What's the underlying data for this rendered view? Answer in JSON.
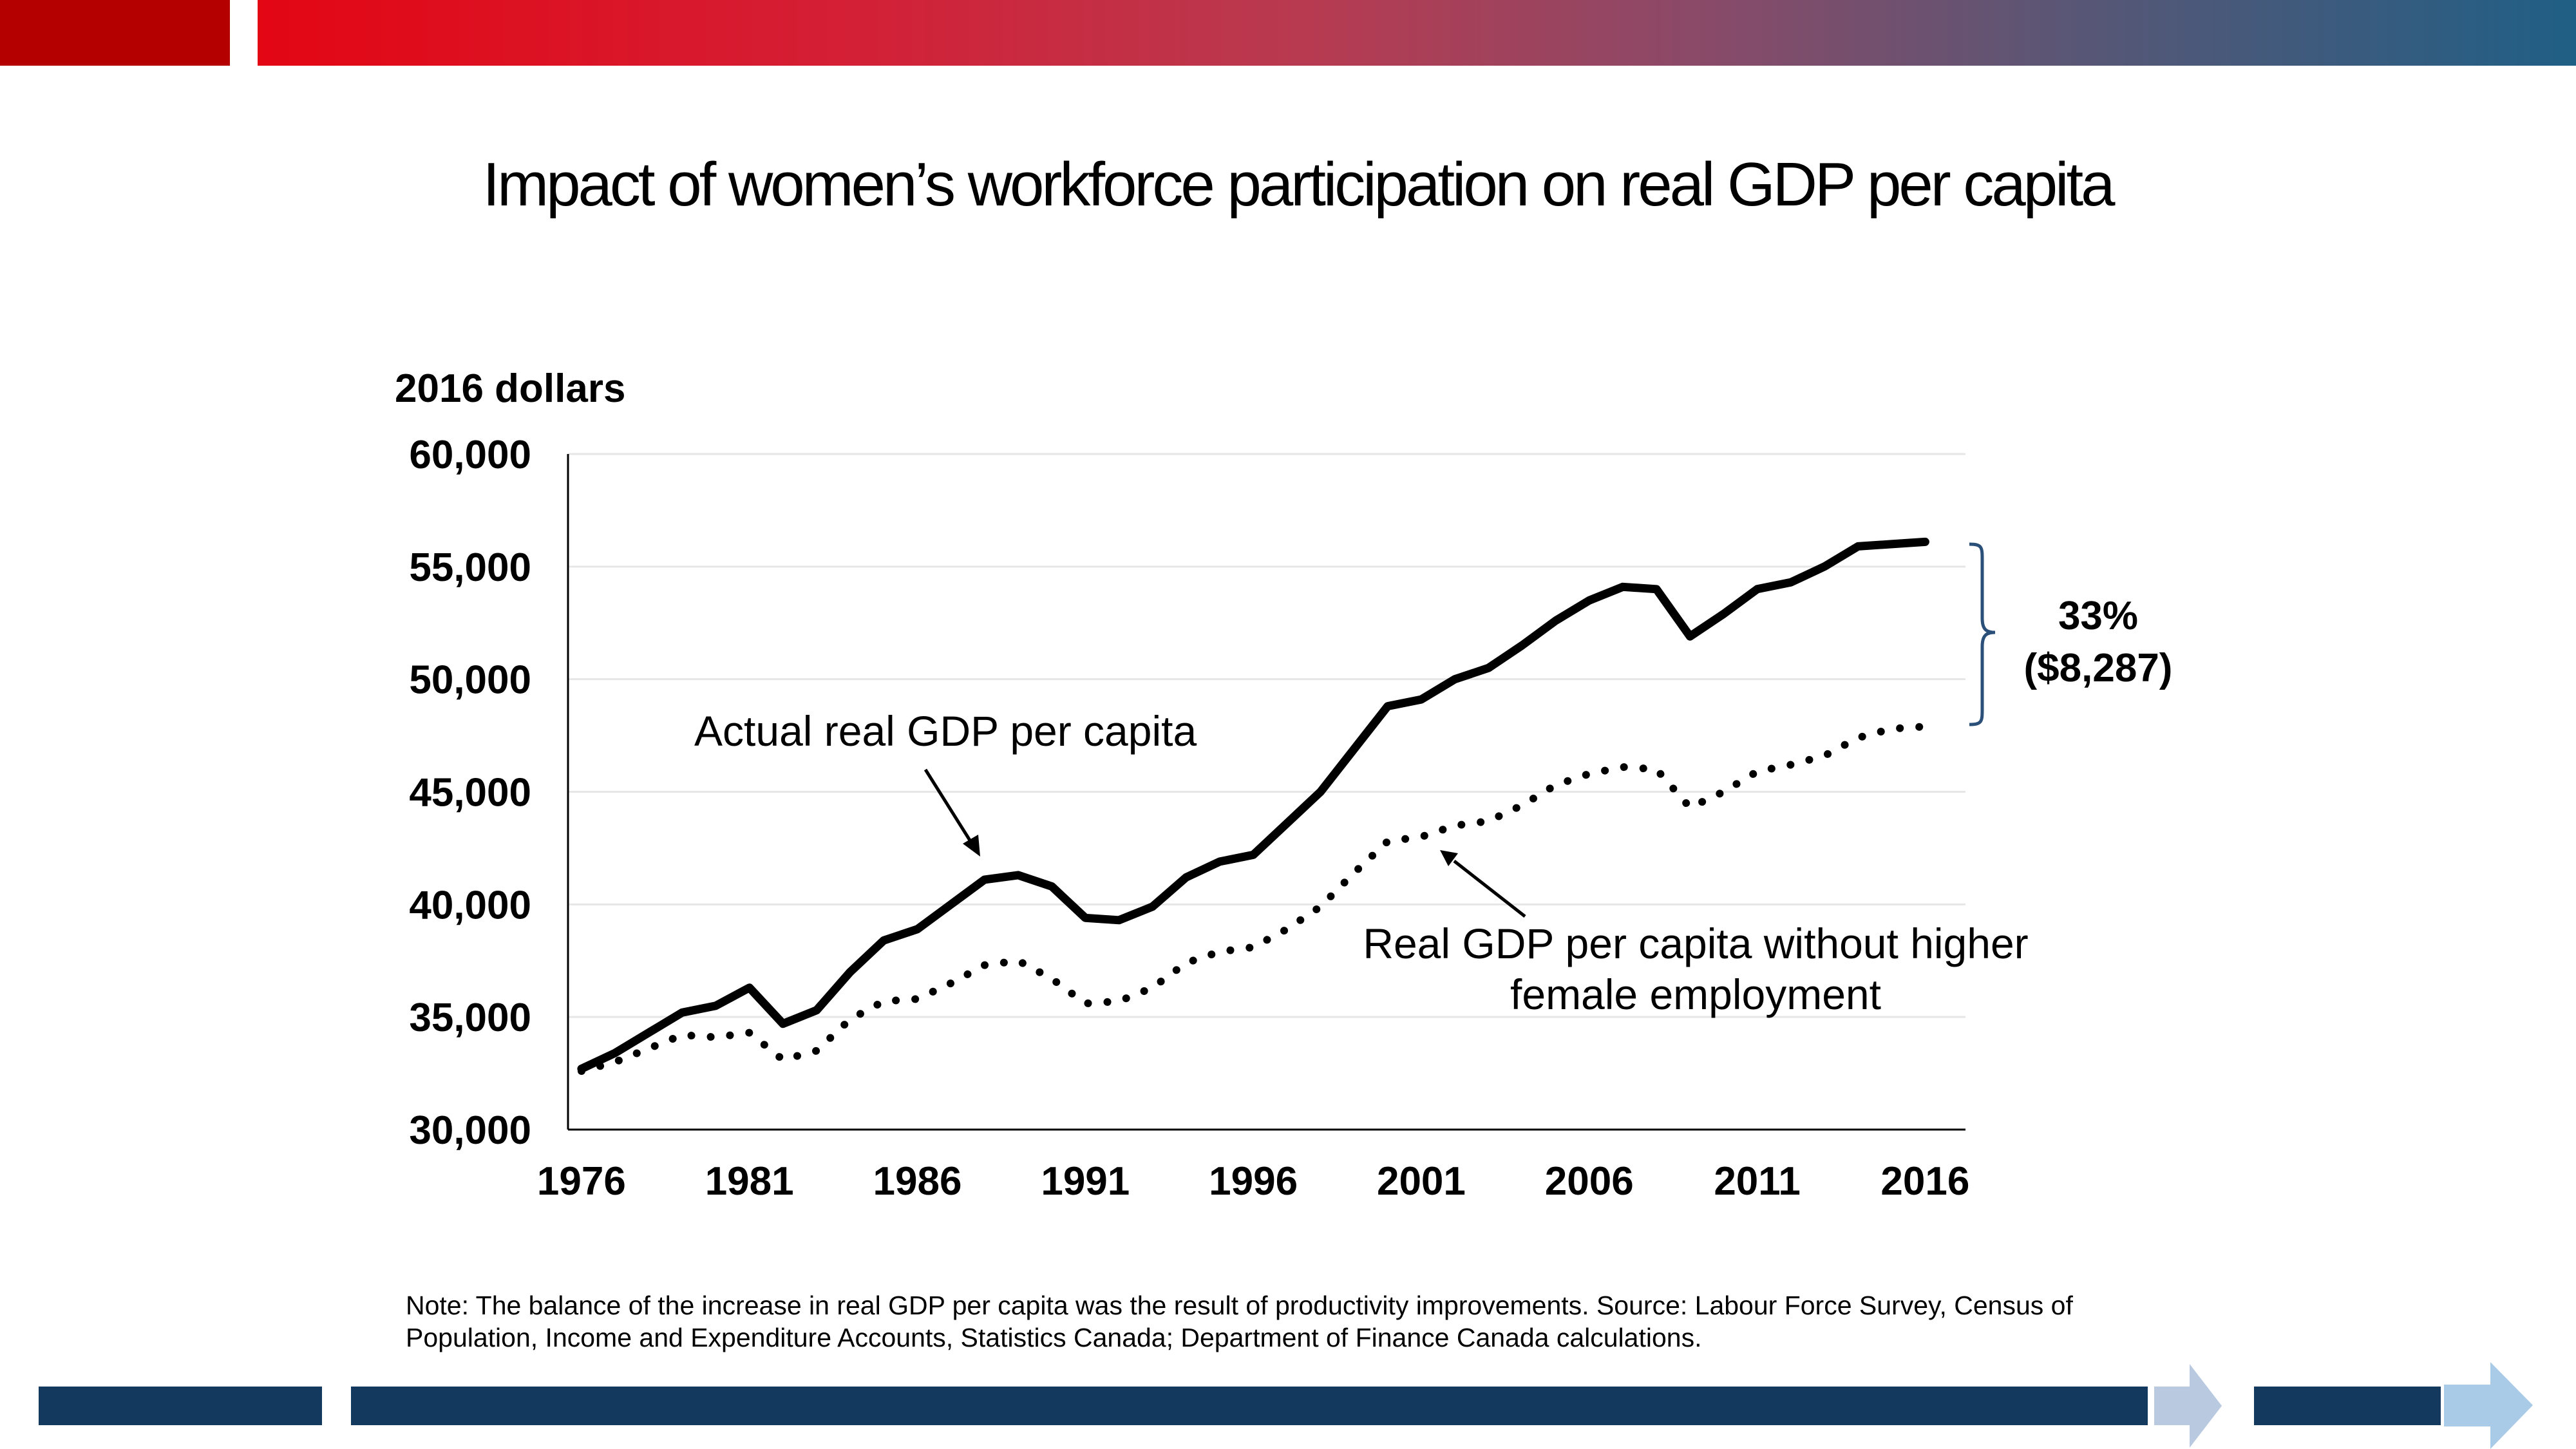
{
  "slide": {
    "title": "Impact of women’s workforce participation on real GDP per capita",
    "note": "Note: The balance of the increase in real GDP per capita was the result of productivity improvements. Source: Labour Force Survey, Census of Population, Income and Expenditure Accounts, Statistics Canada; Department of Finance Canada calculations."
  },
  "chart_data": {
    "type": "line",
    "title": "Impact of women’s workforce participation on real GDP per capita",
    "ylabel": "2016 dollars",
    "xlabel": "",
    "ylim": [
      30000,
      60000
    ],
    "yticks": [
      "60,000",
      "55,000",
      "50,000",
      "45,000",
      "40,000",
      "35,000",
      "30,000"
    ],
    "ytick_values": [
      60000,
      55000,
      50000,
      45000,
      40000,
      35000,
      30000
    ],
    "xticks": [
      "1976",
      "1981",
      "1986",
      "1991",
      "1996",
      "2001",
      "2006",
      "2011",
      "2016"
    ],
    "xtick_values": [
      1976,
      1981,
      1986,
      1991,
      1996,
      2001,
      2006,
      2011,
      2016
    ],
    "grid": true,
    "x": [
      1976,
      1977,
      1978,
      1979,
      1980,
      1981,
      1982,
      1983,
      1984,
      1985,
      1986,
      1987,
      1988,
      1989,
      1990,
      1991,
      1992,
      1993,
      1994,
      1995,
      1996,
      1997,
      1998,
      1999,
      2000,
      2001,
      2002,
      2003,
      2004,
      2005,
      2006,
      2007,
      2008,
      2009,
      2010,
      2011,
      2012,
      2013,
      2014,
      2015,
      2016
    ],
    "series": [
      {
        "name": "Actual real GDP per capita",
        "style": "solid",
        "color": "#000000",
        "values": [
          32700,
          33400,
          34300,
          35200,
          35500,
          36300,
          34700,
          35300,
          37000,
          38400,
          38900,
          40000,
          41100,
          41300,
          40800,
          39400,
          39300,
          39900,
          41200,
          41900,
          42200,
          43600,
          45000,
          46900,
          48800,
          49100,
          50000,
          50500,
          51500,
          52600,
          53500,
          54100,
          54000,
          51900,
          52900,
          54000,
          54300,
          55000,
          55900,
          56000,
          56100
        ]
      },
      {
        "name": "Real GDP per capita without higher female employment",
        "style": "dotted",
        "color": "#000000",
        "values": [
          32600,
          33000,
          33600,
          34200,
          34100,
          34300,
          33100,
          33500,
          34900,
          35700,
          35800,
          36500,
          37300,
          37500,
          36700,
          35600,
          35700,
          36300,
          37400,
          37900,
          38100,
          38900,
          39900,
          41400,
          42800,
          43000,
          43500,
          43700,
          44400,
          45300,
          45800,
          46100,
          46000,
          44300,
          45000,
          45900,
          46200,
          46600,
          47400,
          47800,
          47900
        ]
      }
    ],
    "annotations": [
      {
        "text": "Actual real GDP per capita",
        "points_to": "Actual real GDP per capita"
      },
      {
        "text_lines": [
          "Real GDP per capita without higher",
          "female employment"
        ],
        "points_to": "Real GDP per capita without higher female employment"
      },
      {
        "text_lines": [
          "33%",
          "($8,287)"
        ],
        "type": "brace",
        "from": 48000,
        "to": 56100
      }
    ]
  }
}
